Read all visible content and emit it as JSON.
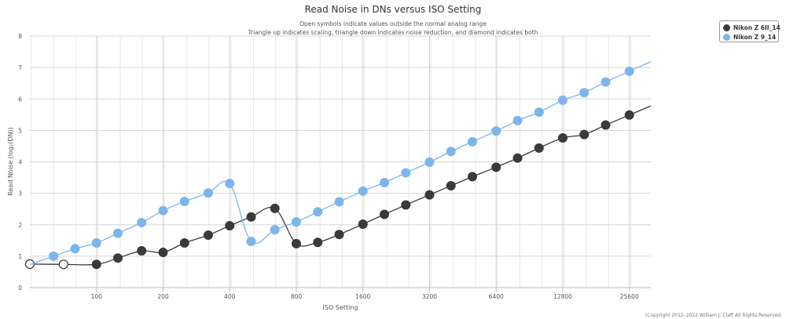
{
  "chart_data": {
    "type": "line",
    "title": "Read Noise in DNs versus ISO Setting",
    "subtitle_lines": [
      "Open symbols indicate values outside the normal analog range",
      "Triangle up indicates scaling, triangle down indicates noise reduction, and diamond indicates both"
    ],
    "xlabel": "ISO Setting",
    "ylabel": "Read Noise (log₂(DN))",
    "x_scale": "log2",
    "xlim": [
      50,
      32000
    ],
    "x_ticks": [
      100,
      200,
      400,
      800,
      1600,
      3200,
      6400,
      12800,
      25600
    ],
    "x_tick_labels": [
      "100",
      "200",
      "400",
      "800",
      "1600",
      "3200",
      "6400",
      "12800",
      "25600"
    ],
    "ylim": [
      0,
      8
    ],
    "y_ticks": [
      0,
      1,
      2,
      3,
      4,
      5,
      6,
      7,
      8
    ],
    "grid": true,
    "legend_position": "top-right",
    "series": [
      {
        "name": "Nikon Z 6II_14",
        "color": "#3a3a3c",
        "points": [
          {
            "x": 50,
            "y": 0.75,
            "open": true
          },
          {
            "x": 71,
            "y": 0.74,
            "open": true
          },
          {
            "x": 100,
            "y": 0.74
          },
          {
            "x": 125,
            "y": 0.94
          },
          {
            "x": 160,
            "y": 1.17
          },
          {
            "x": 200,
            "y": 1.12
          },
          {
            "x": 250,
            "y": 1.42
          },
          {
            "x": 320,
            "y": 1.67
          },
          {
            "x": 400,
            "y": 1.97
          },
          {
            "x": 500,
            "y": 2.25
          },
          {
            "x": 640,
            "y": 2.52
          },
          {
            "x": 800,
            "y": 1.4
          },
          {
            "x": 1000,
            "y": 1.44
          },
          {
            "x": 1250,
            "y": 1.69
          },
          {
            "x": 1600,
            "y": 2.02
          },
          {
            "x": 2000,
            "y": 2.33
          },
          {
            "x": 2500,
            "y": 2.63
          },
          {
            "x": 3200,
            "y": 2.95
          },
          {
            "x": 4000,
            "y": 3.24
          },
          {
            "x": 5000,
            "y": 3.53
          },
          {
            "x": 6400,
            "y": 3.83
          },
          {
            "x": 8000,
            "y": 4.12
          },
          {
            "x": 10000,
            "y": 4.44
          },
          {
            "x": 12800,
            "y": 4.76
          },
          {
            "x": 16000,
            "y": 4.87
          },
          {
            "x": 20000,
            "y": 5.17
          },
          {
            "x": 25600,
            "y": 5.49
          }
        ]
      },
      {
        "name": "Nikon Z 9_14",
        "color": "#7cb5ec",
        "points": [
          {
            "x": 64,
            "y": 1.0
          },
          {
            "x": 80,
            "y": 1.24
          },
          {
            "x": 100,
            "y": 1.42
          },
          {
            "x": 125,
            "y": 1.73
          },
          {
            "x": 160,
            "y": 2.07
          },
          {
            "x": 200,
            "y": 2.45
          },
          {
            "x": 250,
            "y": 2.74
          },
          {
            "x": 320,
            "y": 3.01
          },
          {
            "x": 400,
            "y": 3.31
          },
          {
            "x": 500,
            "y": 1.47
          },
          {
            "x": 640,
            "y": 1.84
          },
          {
            "x": 800,
            "y": 2.09
          },
          {
            "x": 1000,
            "y": 2.41
          },
          {
            "x": 1250,
            "y": 2.73
          },
          {
            "x": 1600,
            "y": 3.07
          },
          {
            "x": 2000,
            "y": 3.34
          },
          {
            "x": 2500,
            "y": 3.65
          },
          {
            "x": 3200,
            "y": 3.99
          },
          {
            "x": 4000,
            "y": 4.33
          },
          {
            "x": 5000,
            "y": 4.64
          },
          {
            "x": 6400,
            "y": 4.98
          },
          {
            "x": 8000,
            "y": 5.31
          },
          {
            "x": 10000,
            "y": 5.58
          },
          {
            "x": 12800,
            "y": 5.96
          },
          {
            "x": 16000,
            "y": 6.2
          },
          {
            "x": 20000,
            "y": 6.54
          },
          {
            "x": 25600,
            "y": 6.88
          }
        ]
      }
    ],
    "credits": "(Copyright 2012–2022 William J. Claff All Rights Reserved."
  }
}
